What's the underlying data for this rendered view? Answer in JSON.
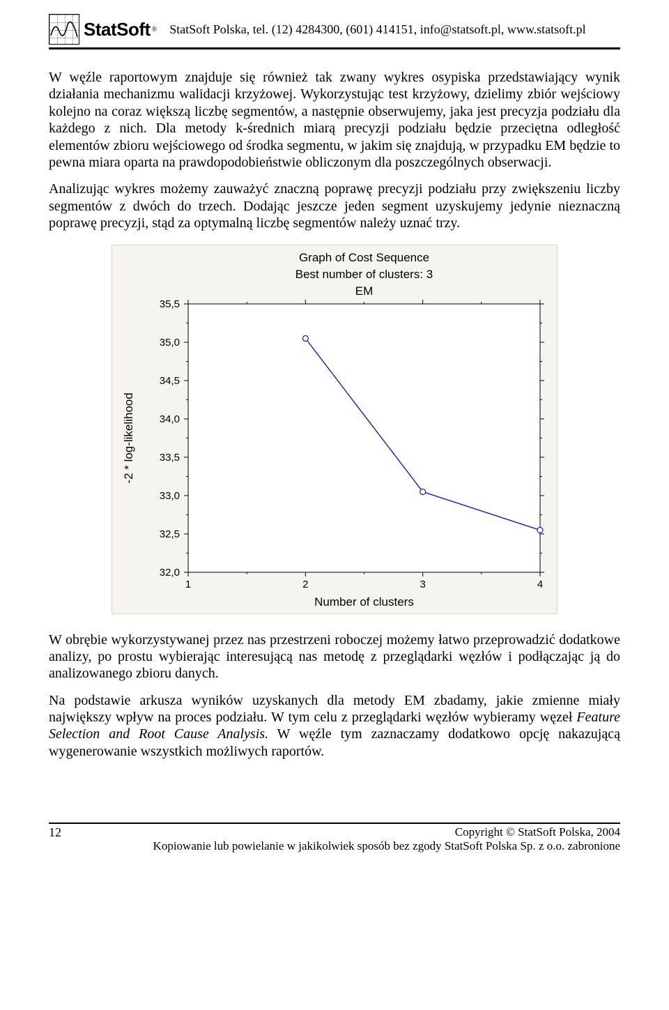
{
  "header": {
    "brand": "StatSoft",
    "info": "StatSoft Polska, tel. (12) 4284300, (601) 414151, info@statsoft.pl, www.statsoft.pl"
  },
  "paragraphs": {
    "p1": "W węźle raportowym znajduje się również tak zwany wykres osypiska przedstawiający wynik działania mechanizmu walidacji krzyżowej. Wykorzystując test krzyżowy, dzielimy zbiór wejściowy kolejno na coraz większą liczbę segmentów, a następnie obserwujemy, jaka jest precyzja podziału dla każdego z nich. Dla metody k-średnich miarą precyzji podziału będzie przeciętna odległość elementów zbioru wejściowego od środka segmentu, w jakim się znajdują, w przypadku EM będzie to pewna miara oparta na prawdopodobieństwie obliczonym dla poszczególnych obserwacji.",
    "p2": "Analizując wykres możemy zauważyć znaczną poprawę precyzji podziału przy zwiększeniu liczby segmentów z dwóch do trzech. Dodając jeszcze jeden segment uzyskujemy jedynie nieznaczną poprawę precyzji, stąd za optymalną liczbę segmentów należy uznać trzy.",
    "p3": "W obrębie wykorzystywanej przez nas przestrzeni roboczej możemy łatwo przeprowadzić dodatkowe analizy, po prostu wybierając interesującą nas metodę z przeglądarki węzłów i podłączając ją do analizowanego zbioru danych.",
    "p4_before": "Na podstawie arkusza wyników uzyskanych dla metody EM zbadamy, jakie zmienne miały największy wpływ na proces podziału. W tym celu z przeglądarki węzłów wybieramy węzeł ",
    "p4_italic": "Feature Selection and Root Cause Analysis.",
    "p4_after": " W węźle tym zaznaczamy dodatkowo opcję nakazującą wygenerowanie wszystkich możliwych raportów."
  },
  "chart": {
    "type": "line",
    "title1": "Graph of Cost Sequence",
    "title2": "Best number of clusters: 3",
    "title3": "EM",
    "xlabel": "Number of clusters",
    "ylabel": "-2 * log-likelihood",
    "xvalues": [
      2,
      3,
      4
    ],
    "yvalues": [
      35.05,
      33.05,
      32.55
    ],
    "xlim": [
      1,
      4
    ],
    "ylim": [
      32.0,
      35.5
    ],
    "xticks": [
      1,
      2,
      3,
      4
    ],
    "yticks": [
      32.0,
      32.5,
      33.0,
      33.5,
      34.0,
      34.5,
      35.0,
      35.5
    ],
    "ytick_labels": [
      "32,0",
      "32,5",
      "33,0",
      "33,5",
      "34,0",
      "34,5",
      "35,0",
      "35,5"
    ],
    "line_color": "#1020b0",
    "line_width": 1.4,
    "marker_fill": "#ffffff",
    "marker_stroke": "#1020b0",
    "marker_radius": 4,
    "background_color": "#f6f4ee",
    "plot_background": "#ffffff",
    "border_color": "#000000",
    "tick_fontsize": 15,
    "title_fontsize": 17,
    "label_fontsize": 17,
    "font_family": "Arial, Helvetica, sans-serif"
  },
  "footer": {
    "page_number": "12",
    "copyright": "Copyright © StatSoft Polska, 2004",
    "restriction": "Kopiowanie lub powielanie w jakikolwiek sposób bez zgody StatSoft Polska Sp. z o.o. zabronione"
  }
}
